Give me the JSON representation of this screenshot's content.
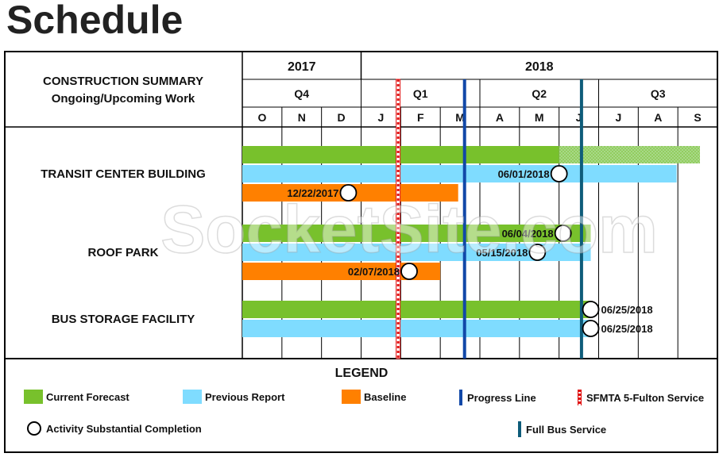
{
  "title": "Schedule",
  "summary": {
    "header_line1": "CONSTRUCTION SUMMARY",
    "header_line2": "Ongoing/Upcoming Work"
  },
  "chart_data": {
    "type": "gantt",
    "years": [
      {
        "label": "2017",
        "start_month": 0,
        "months": 3
      },
      {
        "label": "2018",
        "start_month": 3,
        "months": 9
      }
    ],
    "quarters": [
      {
        "label": "Q4",
        "start_month": 0,
        "months": 3
      },
      {
        "label": "Q1",
        "start_month": 3,
        "months": 3
      },
      {
        "label": "Q2",
        "start_month": 6,
        "months": 3
      },
      {
        "label": "Q3",
        "start_month": 9,
        "months": 3
      }
    ],
    "months": [
      "O",
      "N",
      "D",
      "J",
      "F",
      "M",
      "A",
      "M",
      "J",
      "J",
      "A",
      "S"
    ],
    "timeline_start": "2017-10-01",
    "timeline_end": "2018-09-30",
    "activities": [
      {
        "name": "TRANSIT CENTER BUILDING",
        "bars": [
          {
            "kind": "current_forecast",
            "start": "2017-10-01",
            "end": "2018-06-01",
            "hatched_until": "2018-09-30"
          },
          {
            "kind": "previous_report",
            "start": "2017-10-01",
            "end": "2018-08-31",
            "milestone": "06/01/2018",
            "milestone_date": "2018-06-01"
          },
          {
            "kind": "baseline",
            "start": "2017-10-01",
            "end": "2018-03-15",
            "milestone": "12/22/2017",
            "milestone_date": "2017-12-22"
          }
        ]
      },
      {
        "name": "ROOF PARK",
        "bars": [
          {
            "kind": "current_forecast",
            "start": "2017-10-01",
            "end": "2018-06-25",
            "milestone": "06/04/2018",
            "milestone_date": "2018-06-04"
          },
          {
            "kind": "previous_report",
            "start": "2017-10-01",
            "end": "2018-06-25",
            "milestone": "05/15/2018",
            "milestone_date": "2018-05-15"
          },
          {
            "kind": "baseline",
            "start": "2017-10-01",
            "end": "2018-03-01",
            "milestone": "02/07/2018",
            "milestone_date": "2018-02-07"
          }
        ]
      },
      {
        "name": "BUS STORAGE FACILITY",
        "bars": [
          {
            "kind": "current_forecast",
            "start": "2017-10-01",
            "end": "2018-06-25",
            "milestone": "06/25/2018",
            "milestone_date": "2018-06-25"
          },
          {
            "kind": "previous_report",
            "start": "2017-10-01",
            "end": "2018-06-25",
            "milestone": "06/25/2018",
            "milestone_date": "2018-06-25"
          }
        ]
      }
    ],
    "vertical_lines": [
      {
        "kind": "sfmta",
        "date": "2017-12-31"
      },
      {
        "kind": "progress",
        "date": "2018-03-20"
      },
      {
        "kind": "full_bus",
        "date": "2018-06-18"
      }
    ]
  },
  "legend": {
    "title": "LEGEND",
    "current_forecast": "Current Forecast",
    "previous_report": "Previous Report",
    "baseline": "Baseline",
    "progress_line": "Progress Line",
    "sfmta": "SFMTA 5-Fulton Service",
    "completion": "Activity Substantial Completion",
    "full_bus": "Full Bus Service"
  },
  "watermark": "SocketSite.com",
  "colors": {
    "current_forecast": "#78c12c",
    "previous_report": "#7fdcff",
    "baseline": "#ff8000",
    "progress": "#1148a8",
    "full_bus": "#0e5c7a",
    "sfmta": "#e01010",
    "hatched": "#a8d888"
  }
}
